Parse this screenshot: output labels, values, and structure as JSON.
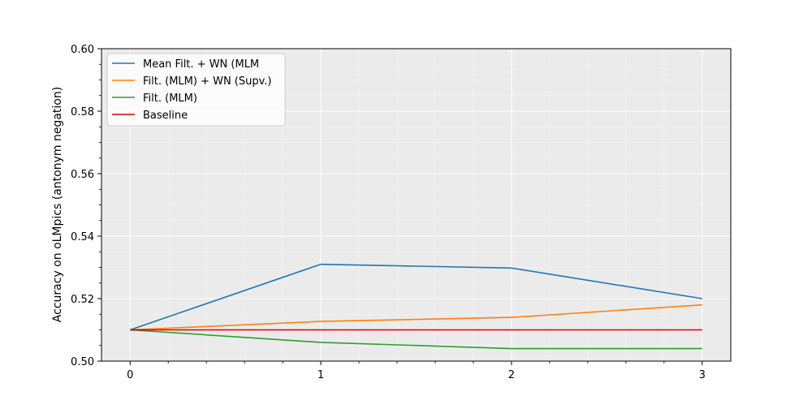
{
  "chart_data": {
    "type": "line",
    "title": "",
    "xlabel": "",
    "ylabel": "Accuracy on oLMpics (antonym negation)",
    "x": [
      0,
      1,
      2,
      3
    ],
    "xlim": [
      -0.15,
      3.15
    ],
    "ylim": [
      0.5,
      0.6
    ],
    "xticks": [
      0,
      1,
      2,
      3
    ],
    "yticks": [
      0.5,
      0.52,
      0.54,
      0.56,
      0.58,
      0.6
    ],
    "xtick_labels": [
      "0",
      "1",
      "2",
      "3"
    ],
    "ytick_labels": [
      "0.50",
      "0.52",
      "0.54",
      "0.56",
      "0.58",
      "0.60"
    ],
    "grid": true,
    "legend_position": "top-left",
    "background": "#ebebeb",
    "series": [
      {
        "name": "Mean Filt. +  WN (MLM",
        "color": "#1f77b4",
        "values": [
          0.51,
          0.531,
          0.5298,
          0.52
        ]
      },
      {
        "name": "Filt. (MLM) + WN (Supv.)",
        "color": "#ff7f0e",
        "values": [
          0.51,
          0.5127,
          0.514,
          0.518
        ]
      },
      {
        "name": "Filt. (MLM)",
        "color": "#2ca02c",
        "values": [
          0.51,
          0.506,
          0.504,
          0.504
        ]
      },
      {
        "name": "Baseline",
        "color": "#e00000",
        "values": [
          0.51,
          0.51,
          0.51,
          0.51
        ]
      }
    ]
  }
}
